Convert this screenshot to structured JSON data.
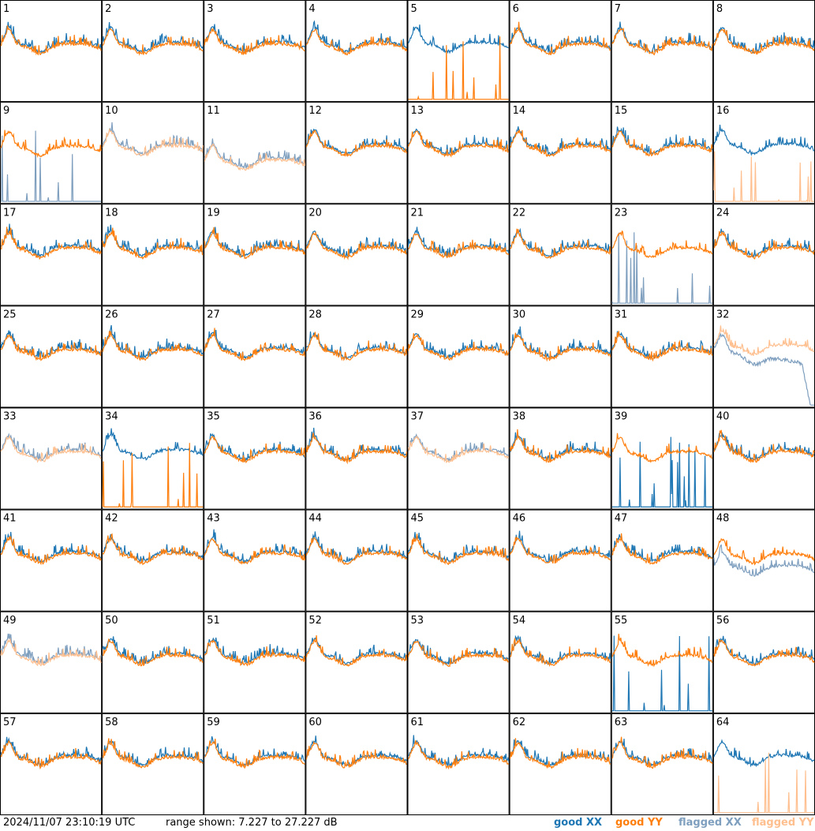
{
  "chart_data": {
    "type": "line",
    "panel_labels": [
      "1",
      "2",
      "3",
      "4",
      "5",
      "6",
      "7",
      "8",
      "9",
      "10",
      "11",
      "12",
      "13",
      "14",
      "15",
      "16",
      "17",
      "18",
      "19",
      "20",
      "21",
      "22",
      "23",
      "24",
      "25",
      "26",
      "27",
      "28",
      "29",
      "30",
      "31",
      "32",
      "33",
      "34",
      "35",
      "36",
      "37",
      "38",
      "39",
      "40",
      "41",
      "42",
      "43",
      "44",
      "45",
      "46",
      "47",
      "48",
      "49",
      "50",
      "51",
      "52",
      "53",
      "54",
      "55",
      "56",
      "57",
      "58",
      "59",
      "60",
      "61",
      "62",
      "63",
      "64"
    ],
    "grid": {
      "rows": 8,
      "cols": 8
    },
    "ylim_db": [
      7.227,
      27.227
    ],
    "y_scale": "dB",
    "series": [
      {
        "name": "good XX",
        "color": "#1f77b4"
      },
      {
        "name": "good YY",
        "color": "#ff7f0e"
      },
      {
        "name": "flagged XX",
        "color": "#7f9fbf"
      },
      {
        "name": "flagged YY",
        "color": "#ffbf8f"
      }
    ],
    "panel_status": {
      "5": {
        "xx": "good-normal",
        "yy": "spikes-low"
      },
      "9": {
        "xx": "flagged-spikes",
        "yy": "good-normal"
      },
      "10": {
        "xx": "flagged-normal",
        "yy": "flagged-normal"
      },
      "11": {
        "xx": "flagged-dip",
        "yy": "flagged-dip"
      },
      "16": {
        "xx": "good-normal",
        "yy": "flagged-spikes"
      },
      "23": {
        "xx": "flagged-spikes",
        "yy": "good-normal"
      },
      "32": {
        "xx": "flagged-drop",
        "yy": "flagged-high"
      },
      "33": {
        "xx": "flagged-normal",
        "yy": "flagged-normal"
      },
      "34": {
        "xx": "good-normal",
        "yy": "spikes-low"
      },
      "37": {
        "xx": "flagged-normal",
        "yy": "flagged-normal"
      },
      "39": {
        "xx": "spikes-low",
        "yy": "good-normal"
      },
      "48": {
        "xx": "flagged-dip",
        "yy": "good-normal"
      },
      "49": {
        "xx": "flagged-normal",
        "yy": "flagged-normal"
      },
      "55": {
        "xx": "spikes-low",
        "yy": "good-normal"
      },
      "64": {
        "xx": "good-normal",
        "yy": "flagged-spikes"
      }
    }
  },
  "footer": {
    "timestamp": "2024/11/07 23:10:19 UTC",
    "range_text": "range shown: 7.227 to 27.227 dB",
    "legend": [
      {
        "label": "good XX",
        "color": "#1f77b4"
      },
      {
        "label": "good YY",
        "color": "#ff7f0e"
      },
      {
        "label": "flagged XX",
        "color": "#7f9fbf"
      },
      {
        "label": "flagged YY",
        "color": "#ffbf8f"
      }
    ]
  }
}
